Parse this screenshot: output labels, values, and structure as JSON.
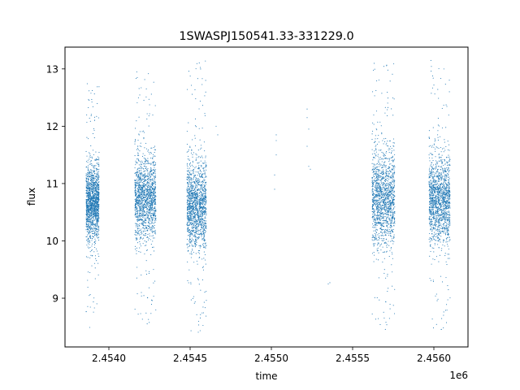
{
  "chart_data": {
    "type": "scatter",
    "title": "1SWASPJ150541.33-331229.0",
    "xlabel": "time",
    "ylabel": "flux",
    "x_offset_label": "1e6",
    "xlim": [
      2.45373,
      2.45621
    ],
    "ylim": [
      8.15,
      13.38
    ],
    "x_ticks": [
      {
        "value": 2.454,
        "label": "2.4540"
      },
      {
        "value": 2.4545,
        "label": "2.4545"
      },
      {
        "value": 2.455,
        "label": "2.4550"
      },
      {
        "value": 2.4555,
        "label": "2.4555"
      },
      {
        "value": 2.456,
        "label": "2.4560"
      }
    ],
    "y_ticks": [
      {
        "value": 9,
        "label": "9"
      },
      {
        "value": 10,
        "label": "10"
      },
      {
        "value": 11,
        "label": "11"
      },
      {
        "value": 12,
        "label": "12"
      },
      {
        "value": 13,
        "label": "13"
      }
    ],
    "grid": false,
    "point_color": "#1f77b4",
    "segments": [
      {
        "x_start": 2.45386,
        "x_end": 2.45394,
        "y_center": 10.65,
        "y_spread": 0.32,
        "y_min": 8.4,
        "y_max": 12.75
      },
      {
        "x_start": 2.45416,
        "x_end": 2.45429,
        "y_center": 10.75,
        "y_spread": 0.35,
        "y_min": 8.5,
        "y_max": 12.95
      },
      {
        "x_start": 2.45448,
        "x_end": 2.4546,
        "y_center": 10.6,
        "y_spread": 0.38,
        "y_min": 8.35,
        "y_max": 13.15
      },
      {
        "x_start": 2.45562,
        "x_end": 2.45576,
        "y_center": 10.75,
        "y_spread": 0.4,
        "y_min": 8.4,
        "y_max": 13.1
      },
      {
        "x_start": 2.45597,
        "x_end": 2.4561,
        "y_center": 10.7,
        "y_spread": 0.38,
        "y_min": 8.4,
        "y_max": 13.15
      }
    ],
    "isolated_points": [
      {
        "x": 2.45466,
        "y": 12.0
      },
      {
        "x": 2.45467,
        "y": 11.85
      },
      {
        "x": 2.45503,
        "y": 11.85
      },
      {
        "x": 2.45503,
        "y": 11.75
      },
      {
        "x": 2.45503,
        "y": 11.5
      },
      {
        "x": 2.45502,
        "y": 11.15
      },
      {
        "x": 2.45502,
        "y": 10.9
      },
      {
        "x": 2.45522,
        "y": 12.3
      },
      {
        "x": 2.45522,
        "y": 12.15
      },
      {
        "x": 2.45523,
        "y": 11.95
      },
      {
        "x": 2.45522,
        "y": 11.65
      },
      {
        "x": 2.45523,
        "y": 11.3
      },
      {
        "x": 2.45524,
        "y": 11.25
      },
      {
        "x": 2.45535,
        "y": 9.25
      },
      {
        "x": 2.45536,
        "y": 9.27
      }
    ]
  }
}
